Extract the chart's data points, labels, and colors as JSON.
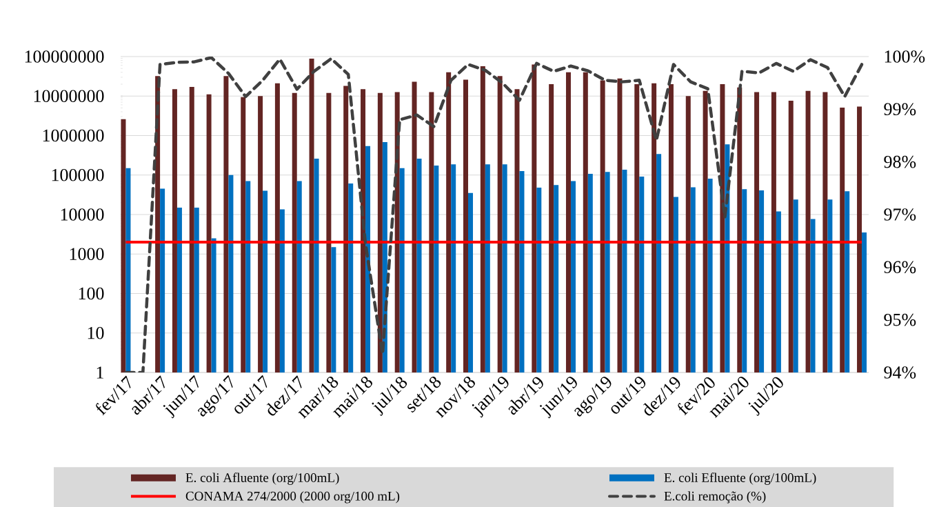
{
  "chart_data": {
    "type": "bar",
    "categories": [
      "fev/17",
      null,
      "abr/17",
      null,
      "jun/17",
      null,
      "ago/17",
      null,
      "out/17",
      null,
      "dez/17",
      null,
      "mar/18",
      null,
      "mai/18",
      null,
      "jul/18",
      null,
      "set/18",
      null,
      "nov/18",
      null,
      "jan/19",
      null,
      "abr/19",
      null,
      "jun/19",
      null,
      "ago/19",
      null,
      "out/19",
      null,
      "dez/19",
      null,
      "fev/20",
      null,
      "mai/20",
      null,
      "jul/20",
      null,
      null,
      null,
      null,
      null
    ],
    "series": [
      {
        "name": "E. coli Afluente (org/100mL)",
        "color": "#632523",
        "values": [
          2600000,
          null,
          32000000,
          15000000,
          17000000,
          11000000,
          32000000,
          9400000,
          10000000,
          21000000,
          12000000,
          89000000,
          12000000,
          18000000,
          15000000,
          12000000,
          12600000,
          23000000,
          12600000,
          40000000,
          26000000,
          57000000,
          32000000,
          15000000,
          63000000,
          20000000,
          40000000,
          40000000,
          25000000,
          28000000,
          20000000,
          21000000,
          20000000,
          10000000,
          13500000,
          20000000,
          16600000,
          12600000,
          12600000,
          7600000,
          13500000,
          12600000,
          5100000,
          5400000
        ]
      },
      {
        "name": "E. coli Efluente (org/100mL)",
        "color": "#0070c0",
        "values": [
          150000,
          null,
          45000,
          15000,
          15000,
          2500,
          100000,
          70000,
          40000,
          13500,
          70000,
          260000,
          1500,
          61000,
          540000,
          680000,
          150000,
          260000,
          174000,
          186000,
          35000,
          186000,
          186000,
          126000,
          48000,
          56000,
          70000,
          107000,
          120000,
          137000,
          91000,
          340000,
          28000,
          49000,
          81000,
          600000,
          44000,
          41000,
          12000,
          24000,
          7700,
          24000,
          39000,
          3500
        ]
      },
      {
        "name": "E.coli remoção (%)",
        "type": "line",
        "axis": "y2",
        "color": "#404040",
        "line_style": "dashed",
        "values": [
          94,
          94,
          99.85,
          99.89,
          99.9,
          99.98,
          99.68,
          99.24,
          99.55,
          99.95,
          99.38,
          99.72,
          99.96,
          99.66,
          96.45,
          94.35,
          98.8,
          98.89,
          98.67,
          99.55,
          99.85,
          99.74,
          99.5,
          99.17,
          99.87,
          99.72,
          99.82,
          99.73,
          99.55,
          99.52,
          99.55,
          98.41,
          99.85,
          99.52,
          99.39,
          96.95,
          99.72,
          99.69,
          99.87,
          99.72,
          99.94,
          99.79,
          99.24,
          99.85
        ]
      }
    ],
    "log": "y",
    "ylim": [
      1,
      100000000
    ],
    "yticks": [
      1,
      10,
      100,
      1000,
      10000,
      100000,
      1000000,
      10000000,
      100000000
    ],
    "y2lim": [
      94,
      100
    ],
    "y2ticks": [
      {
        "value": 94,
        "label": "94%"
      },
      {
        "value": 95,
        "label": "95%"
      },
      {
        "value": 96,
        "label": "96%"
      },
      {
        "value": 97,
        "label": "97%"
      },
      {
        "value": 98,
        "label": "98%"
      },
      {
        "value": 99,
        "label": "99%"
      },
      {
        "value": 100,
        "label": "100%"
      }
    ],
    "ref_lines": [
      {
        "axis": "y",
        "value": 2000,
        "label": "CONAMA 274/2000 (2000 org/100 mL)",
        "color": "#ff0000"
      }
    ],
    "grid": "y",
    "legend": "bottom"
  }
}
